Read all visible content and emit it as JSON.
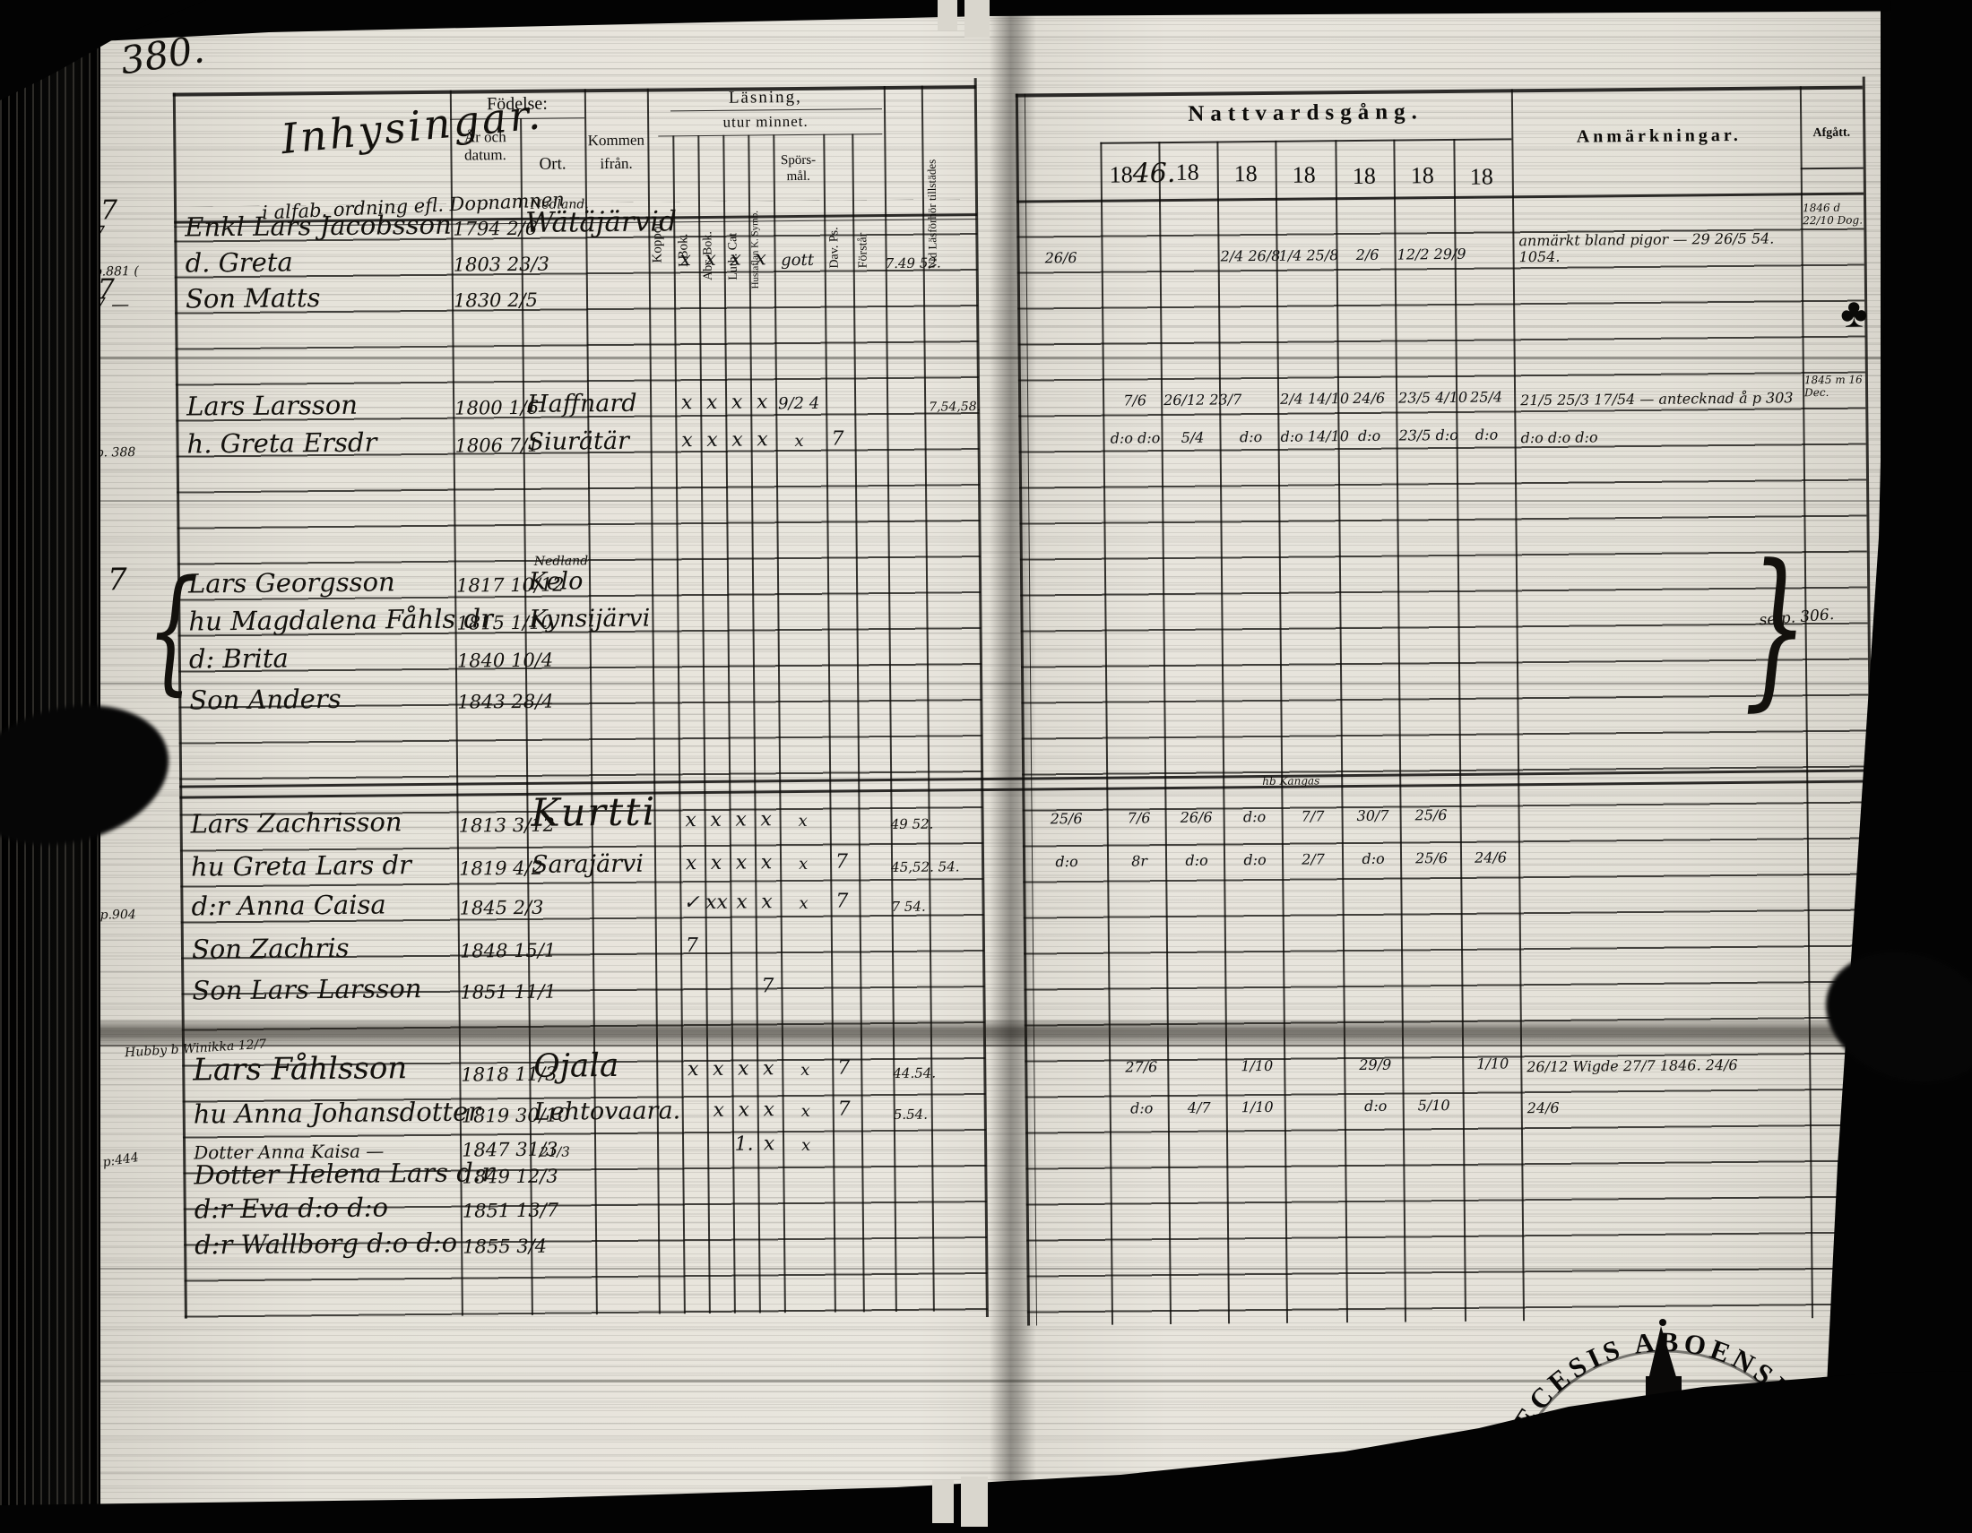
{
  "misc": {
    "page_number": "380.",
    "alpha_note": "i alfab. ordning efl. Dopnamnen",
    "g3_note": "se p. 306.",
    "kangas_note": "hb Kangas",
    "club": "♣",
    "hubby_note": "Hubby b Winikka 12/7",
    "margin_seven_a": "7",
    "margin_seven_b": "7",
    "margin_p904": "p.904",
    "brace_open": "{",
    "brace_close": "}"
  },
  "header": {
    "group_title": "Inhysingar.",
    "birth_title": "Födelse:",
    "birth_col1": "År och datum.",
    "birth_col2": "Ort.",
    "kommen": "Kommen ifrån.",
    "reading_title": "Läsning,",
    "reading_subtitle": "utur minnet.",
    "col_koppor": "Koppor.",
    "col_ibok": "I Bok.",
    "col_abcbok": "Abc-Bok.",
    "col_luthcat": "Luth. Cat",
    "col_hustaflan": "Hustaflan K. Symb.",
    "col_sporsmal": "Spörs-mål.",
    "col_davps": "Dav. Ps.",
    "col_forstar": "Förstår",
    "col_attend": "Vid Läsförhör tillstädes",
    "communion_title": "Nattvardsgång.",
    "years": [
      {
        "p": "18",
        "h": "46."
      },
      {
        "p": "18",
        "h": ""
      },
      {
        "p": "18",
        "h": ""
      },
      {
        "p": "18",
        "h": ""
      },
      {
        "p": "18",
        "h": ""
      },
      {
        "p": "18",
        "h": ""
      },
      {
        "p": "18",
        "h": ""
      }
    ],
    "remarks": "Anmärkningar.",
    "departed": "Afgått."
  },
  "entries": [
    {
      "margin": "7",
      "name": "Enkl Lars Jacobsson",
      "birth": "1794 2/6",
      "ort": "Wätäjärvid",
      "ort_note": "Nedland.",
      "afgatt": "1846 d 22/10 Dog."
    },
    {
      "margin": "p.881 (",
      "name": "d. Greta",
      "birth": "1803 23/3",
      "reading": [
        "",
        "x",
        "x",
        "x",
        "x",
        "gott",
        "",
        ""
      ],
      "attendance": "7.49 52.",
      "communion": [
        "26/6",
        "",
        "",
        "2/4 26/8",
        "1/4 25/8",
        "2/6",
        "12/2 29/9",
        ""
      ],
      "remark": "anmärkt bland pigor — 29 26/5 54. 1054."
    },
    {
      "margin": "7 —",
      "name": "Son Matts",
      "birth": "1830 2/5",
      "afgatt": "1845 m 16 Dec."
    },
    {
      "name": "Lars Larsson",
      "birth": "1800 1/6",
      "ort": "Haffnard",
      "reading": [
        "",
        "x",
        "x",
        "x",
        "x",
        "9/2 4",
        "",
        ""
      ],
      "att2": "7,54,58.",
      "communion": [
        "",
        "7/6",
        "26/12 23/7",
        "",
        "2/4 14/10",
        "24/6",
        "23/5 4/10",
        "25/4"
      ],
      "remark": "21/5 25/3 17/54 — antecknad å p 303"
    },
    {
      "margin": "p. 388",
      "name": "h. Greta Ersdr",
      "birth": "1806 7/1",
      "ort": "Siurätär",
      "reading": [
        "",
        "x",
        "x",
        "x",
        "x",
        "x",
        "7",
        ""
      ],
      "communion": [
        "",
        "d:o d:o",
        "5/4",
        "d:o",
        "d:o 14/10",
        "d:o",
        "23/5 d:o",
        "d:o"
      ],
      "remark": "d:o   d:o   d:o"
    },
    {
      "name": "Lars Georgsson",
      "birth": "1817 10/12",
      "ort": "Kelo",
      "ort_note": "Nedland"
    },
    {
      "name": "hu Magdalena Fåhls dr",
      "birth": "1815 1/10",
      "ort": "Kynsijärvi"
    },
    {
      "name": "d: Brita",
      "birth": "1840 10/4"
    },
    {
      "name": "Son Anders",
      "birth": "1843 28/4"
    },
    {
      "name": "Lars Zachrisson",
      "birth": "1813 3/12",
      "ort": "Kurtti",
      "reading": [
        "",
        "x",
        "x",
        "x",
        "x",
        "x",
        "",
        ""
      ],
      "attendance": "49 52.",
      "communion": [
        "25/6",
        "7/6",
        "26/6",
        "d:o",
        "7/7",
        "30/7",
        "25/6",
        ""
      ]
    },
    {
      "name": "hu Greta Lars dr",
      "birth": "1819 4/2",
      "ort": "Sarajärvi",
      "reading": [
        "",
        "x",
        "x",
        "x",
        "x",
        "x",
        "7",
        ""
      ],
      "attendance": "45,52. 54.",
      "communion": [
        "d:o",
        "8r",
        "d:o",
        "d:o",
        "2/7",
        "d:o",
        "25/6",
        "24/6"
      ]
    },
    {
      "margin": "p.904",
      "name": "d:r Anna Caisa",
      "birth": "1845 2/3",
      "reading": [
        "",
        "✓",
        "xx",
        "x",
        "x",
        "x",
        "7",
        ""
      ],
      "attendance": "7 54."
    },
    {
      "name": "Son Zachris",
      "birth": "1848 15/1",
      "reading": [
        "",
        "7",
        "",
        "",
        "",
        "",
        "",
        ""
      ]
    },
    {
      "name": "Son Lars Larsson",
      "birth": "1851 11/1",
      "reading": [
        "",
        "",
        "",
        "",
        "7",
        "",
        "",
        ""
      ]
    },
    {
      "name": "Lars Fåhlsson",
      "birth": "1818 11/3",
      "ort": "Ojala",
      "reading": [
        "",
        "x",
        "x",
        "x",
        "x",
        "x",
        "7",
        ""
      ],
      "attendance": "44.54.",
      "communion": [
        "",
        "27/6",
        "",
        "1/10",
        "",
        "29/9",
        "",
        "1/10"
      ],
      "remark": "26/12 Wigde 27/7 1846. 24/6"
    },
    {
      "name": "hu Anna Johansdotter",
      "birth": "1819 30/10",
      "ort": "Lehtovaara.",
      "reading": [
        "",
        "",
        "x",
        "x",
        "x",
        "x",
        "7",
        ""
      ],
      "attendance": "5.54.",
      "communion": [
        "",
        "d:o",
        "4/7",
        "1/10",
        "",
        "d:o",
        "5/10",
        ""
      ],
      "remark": "24/6"
    },
    {
      "margin": "p:444",
      "name": "Dotter Anna Kaisa —",
      "birth": "1847 31/3",
      "birth2": "21/3",
      "reading": [
        "",
        "",
        "",
        "1.",
        "x",
        "x",
        "",
        ""
      ]
    },
    {
      "name": "Dotter Helena Lars d:r",
      "birth": "1849 12/3"
    },
    {
      "name": "d:r Eva      d:o   d:o",
      "birth": "1851 13/7"
    },
    {
      "name": "d:r Wallborg  d:o  d:o",
      "birth": "1855 3/4"
    }
  ],
  "stamp": {
    "text": "DIOECESIS ABOENSIS. M"
  }
}
